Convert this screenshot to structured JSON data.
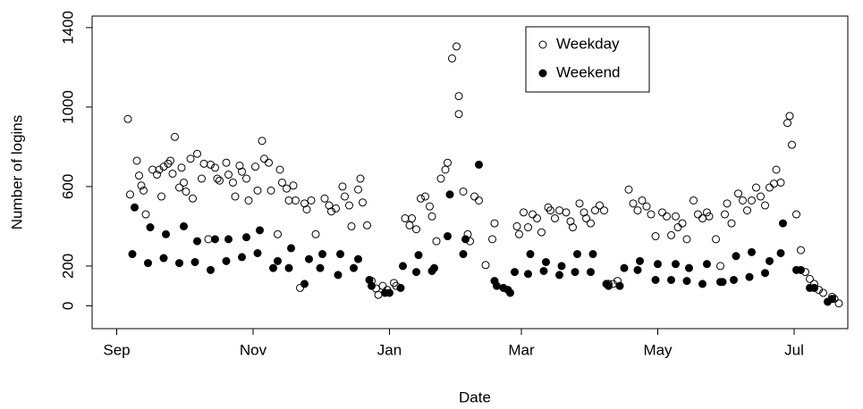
{
  "chart_data": {
    "type": "scatter",
    "x_label": "Date",
    "y_label": "Number of logins",
    "xlim": [
      -11,
      327
    ],
    "ylim": [
      -115,
      1458
    ],
    "xticks": [
      {
        "value": 0,
        "label": "Sep"
      },
      {
        "value": 61,
        "label": "Nov"
      },
      {
        "value": 122,
        "label": "Jan"
      },
      {
        "value": 181,
        "label": "Mar"
      },
      {
        "value": 242,
        "label": "May"
      },
      {
        "value": 303,
        "label": "Jul"
      }
    ],
    "yticks": [
      0,
      200,
      600,
      1000,
      1400
    ],
    "legend": "top",
    "series": [
      {
        "name": "Weekday",
        "color": "#000000",
        "filled": false,
        "x": [
          5,
          6,
          9,
          10,
          11,
          12,
          13,
          16,
          18,
          19,
          20,
          21,
          23,
          24,
          25,
          26,
          28,
          29,
          30,
          31,
          33,
          34,
          36,
          38,
          39,
          41,
          42,
          44,
          45,
          46,
          49,
          50,
          52,
          53,
          55,
          56,
          58,
          59,
          62,
          63,
          65,
          66,
          68,
          69,
          72,
          73,
          74,
          76,
          77,
          79,
          80,
          82,
          84,
          85,
          87,
          89,
          93,
          95,
          96,
          98,
          101,
          102,
          104,
          105,
          108,
          109,
          110,
          112,
          114,
          116,
          117,
          119,
          121,
          124,
          125,
          129,
          131,
          132,
          134,
          136,
          138,
          140,
          141,
          143,
          145,
          147,
          148,
          150,
          152,
          153,
          153,
          155,
          157,
          158,
          160,
          162,
          165,
          168,
          169,
          179,
          180,
          182,
          184,
          186,
          188,
          190,
          193,
          194,
          196,
          198,
          201,
          203,
          204,
          207,
          209,
          210,
          212,
          214,
          216,
          218,
          220,
          222,
          224,
          229,
          231,
          233,
          235,
          237,
          239,
          241,
          244,
          246,
          248,
          250,
          251,
          253,
          255,
          258,
          260,
          262,
          264,
          265,
          268,
          270,
          272,
          273,
          275,
          278,
          280,
          282,
          284,
          286,
          288,
          290,
          292,
          294,
          295,
          297,
          300,
          301,
          302,
          304,
          306,
          308,
          310,
          312,
          314,
          316,
          320,
          321,
          323
        ],
        "values": [
          940,
          560,
          730,
          655,
          605,
          580,
          460,
          685,
          660,
          685,
          550,
          700,
          715,
          730,
          665,
          850,
          595,
          695,
          620,
          575,
          740,
          540,
          765,
          640,
          715,
          335,
          710,
          695,
          640,
          630,
          720,
          660,
          620,
          550,
          705,
          675,
          640,
          530,
          700,
          580,
          830,
          740,
          720,
          580,
          360,
          685,
          620,
          590,
          530,
          605,
          530,
          90,
          515,
          485,
          530,
          360,
          540,
          505,
          475,
          490,
          600,
          550,
          505,
          400,
          585,
          640,
          520,
          405,
          125,
          87,
          55,
          100,
          80,
          115,
          100,
          440,
          405,
          440,
          385,
          540,
          550,
          500,
          450,
          325,
          640,
          685,
          720,
          1245,
          1305,
          1055,
          965,
          575,
          360,
          325,
          550,
          530,
          205,
          335,
          415,
          400,
          360,
          470,
          395,
          460,
          440,
          370,
          495,
          480,
          440,
          480,
          470,
          425,
          395,
          515,
          470,
          440,
          415,
          480,
          505,
          480,
          110,
          110,
          125,
          585,
          515,
          480,
          530,
          500,
          460,
          350,
          470,
          450,
          355,
          450,
          395,
          415,
          335,
          530,
          460,
          440,
          470,
          450,
          335,
          200,
          460,
          515,
          415,
          565,
          530,
          480,
          530,
          595,
          550,
          505,
          595,
          615,
          685,
          620,
          920,
          955,
          810,
          460,
          280,
          170,
          135,
          110,
          80,
          65,
          45,
          35,
          12
        ]
      },
      {
        "name": "Weekend",
        "color": "#000000",
        "filled": true,
        "x": [
          7,
          8,
          14,
          15,
          21,
          22,
          28,
          30,
          35,
          36,
          42,
          44,
          49,
          50,
          56,
          58,
          63,
          64,
          70,
          72,
          77,
          78,
          84,
          86,
          91,
          92,
          99,
          100,
          106,
          108,
          113,
          114,
          120,
          122,
          127,
          128,
          134,
          135,
          141,
          142,
          148,
          149,
          155,
          156,
          162,
          169,
          170,
          173,
          175,
          176,
          178,
          184,
          185,
          191,
          192,
          198,
          199,
          205,
          206,
          212,
          213,
          219,
          220,
          225,
          227,
          233,
          234,
          241,
          242,
          248,
          250,
          255,
          256,
          262,
          264,
          270,
          271,
          276,
          277,
          283,
          284,
          290,
          292,
          297,
          298,
          304,
          306,
          310,
          312,
          318,
          320
        ],
        "values": [
          260,
          495,
          215,
          395,
          240,
          360,
          215,
          400,
          220,
          325,
          180,
          335,
          225,
          335,
          245,
          345,
          265,
          380,
          190,
          225,
          190,
          290,
          110,
          235,
          190,
          260,
          155,
          260,
          190,
          235,
          130,
          100,
          65,
          65,
          90,
          200,
          170,
          255,
          175,
          190,
          350,
          560,
          260,
          335,
          710,
          125,
          100,
          90,
          80,
          65,
          170,
          160,
          260,
          175,
          220,
          155,
          200,
          170,
          260,
          170,
          260,
          110,
          100,
          100,
          190,
          180,
          225,
          130,
          210,
          130,
          210,
          125,
          190,
          110,
          210,
          120,
          120,
          130,
          250,
          145,
          270,
          165,
          225,
          265,
          415,
          180,
          180,
          90,
          90,
          20,
          35
        ]
      }
    ]
  }
}
